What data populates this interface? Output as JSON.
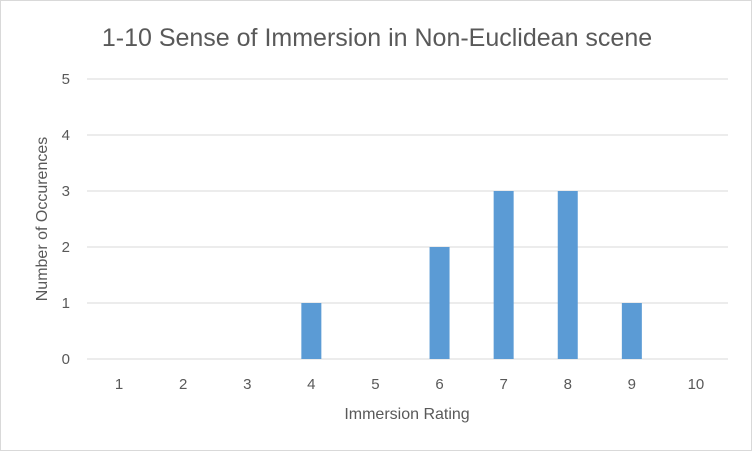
{
  "chart_data": {
    "type": "bar",
    "title": "1-10 Sense of Immersion in Non-Euclidean scene",
    "xlabel": "Immersion Rating",
    "ylabel": "Number of Occurences",
    "categories": [
      "1",
      "2",
      "3",
      "4",
      "5",
      "6",
      "7",
      "8",
      "9",
      "10"
    ],
    "values": [
      0,
      0,
      0,
      1,
      0,
      2,
      3,
      3,
      1,
      0
    ],
    "ylim": [
      0,
      5
    ],
    "yticks": [
      "0",
      "1",
      "2",
      "3",
      "4",
      "5"
    ],
    "grid": true,
    "legend": "none",
    "bar_color": "#5b9bd5"
  }
}
